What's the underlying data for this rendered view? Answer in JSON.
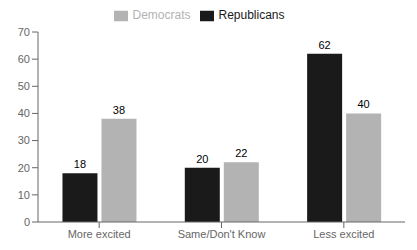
{
  "chart_data": {
    "type": "bar",
    "categories": [
      "More excited",
      "Same/Don't Know",
      "Less excited"
    ],
    "series": [
      {
        "name": "Republicans",
        "color": "#1a1a1a",
        "values": [
          18,
          20,
          62
        ]
      },
      {
        "name": "Democrats",
        "color": "#b3b3b3",
        "values": [
          38,
          22,
          40
        ]
      }
    ],
    "ylim": [
      0,
      70
    ],
    "yticks": [
      0,
      10,
      20,
      30,
      40,
      50,
      60,
      70
    ],
    "data_labels": true,
    "legend": "top",
    "grid": false
  }
}
